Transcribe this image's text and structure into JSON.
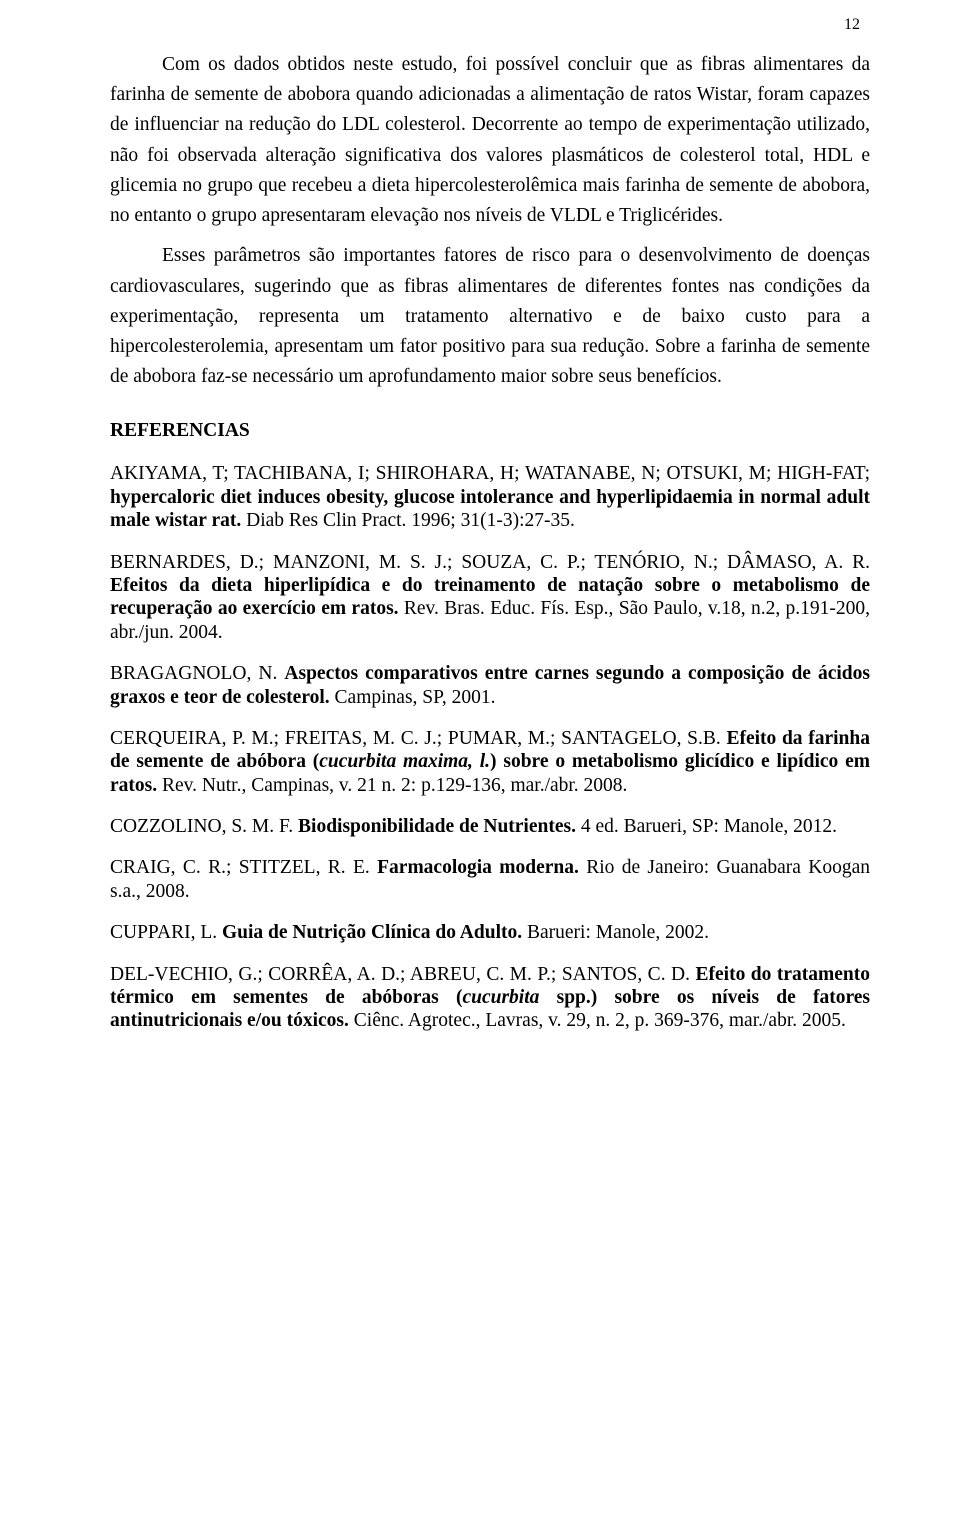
{
  "page_number": "12",
  "conclusion": {
    "p1": "Com os dados obtidos neste estudo, foi possível concluir que as fibras alimentares da farinha de semente de abobora quando adicionadas a alimentação de ratos Wistar, foram capazes de influenciar na redução do LDL colesterol. Decorrente ao tempo de experimentação utilizado, não foi observada alteração significativa dos valores plasmáticos de colesterol total, HDL e glicemia no grupo que recebeu a dieta hipercolesterolêmica mais farinha de semente de abobora, no entanto o grupo apresentaram elevação nos níveis de VLDL e Triglicérides.",
    "p2": "Esses parâmetros são importantes fatores de risco para o desenvolvimento de doenças cardiovasculares, sugerindo que as fibras alimentares de diferentes fontes nas condições da experimentação, representa um tratamento alternativo e de baixo custo para a hipercolesterolemia, apresentam um fator positivo para sua redução. Sobre a farinha de semente de abobora faz-se necessário um aprofundamento maior sobre seus benefícios."
  },
  "references_heading": "REFERENCIAS",
  "refs": {
    "r1_a": "AKIYAMA, T; TACHIBANA, I; SHIROHARA, H; WATANABE, N; OTSUKI, M; HIGH-FAT; ",
    "r1_b": "hypercaloric diet induces obesity, glucose intolerance and hyperlipidaemia in normal adult male wistar rat.",
    "r1_c": " Diab Res Clin Pract. 1996; 31(1-3):27-35.",
    "r2_a": "BERNARDES, D.; MANZONI, M. S. J.; SOUZA, C. P.; TENÓRIO, N.; DÂMASO, A. R. ",
    "r2_b": "Efeitos da dieta hiperlipídica e do treinamento de natação sobre o metabolismo de recuperação ao exercício em ratos.",
    "r2_c": " Rev. Bras. Educ. Fís. Esp., São Paulo, v.18, n.2, p.191-200, abr./jun. 2004.",
    "r3_a": "BRAGAGNOLO, N. ",
    "r3_b": "Aspectos comparativos entre carnes segundo a composição de ácidos graxos e teor de colesterol.",
    "r3_c": " Campinas, SP, 2001.",
    "r4_a": "CERQUEIRA, P. M.; FREITAS, M. C. J.; PUMAR, M.; SANTAGELO, S.B. ",
    "r4_b1": "Efeito da farinha de semente de abóbora (",
    "r4_it": "cucurbita maxima, l.",
    "r4_b2": ") sobre o metabolismo glicídico e lipídico em ratos.",
    "r4_c": " Rev. Nutr., Campinas, v. 21 n. 2: p.129-136, mar./abr. 2008.",
    "r5_a": "COZZOLINO, S. M. F. ",
    "r5_b": "Biodisponibilidade de Nutrientes.",
    "r5_c": " 4 ed. Barueri, SP: Manole, 2012.",
    "r6_a": "CRAIG, C. R.; STITZEL, R. E. ",
    "r6_b": "Farmacologia moderna.",
    "r6_c": " Rio de Janeiro: Guanabara Koogan s.a., 2008.",
    "r7_a": "CUPPARI, L. ",
    "r7_b": "Guia de Nutrição Clínica do Adulto.",
    "r7_c": " Barueri: Manole, 2002.",
    "r8_a": "DEL-VECHIO, G.; CORRÊA, A. D.; ABREU, C. M. P.; SANTOS, C. D. ",
    "r8_b1": "Efeito do tratamento térmico em sementes de abóboras (",
    "r8_it": "cucurbita",
    "r8_b2": " spp.) sobre os níveis de fatores antinutricionais e/ou tóxicos.",
    "r8_c": " Ciênc. Agrotec., Lavras, v. 29, n. 2, p. 369-376, mar./abr. 2005."
  }
}
